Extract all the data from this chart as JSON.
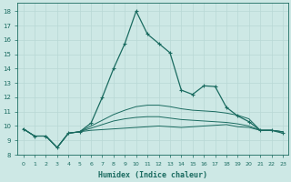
{
  "xlabel": "Humidex (Indice chaleur)",
  "background_color": "#cde8e5",
  "grid_color": "#b8d8d5",
  "line_color": "#1a6b60",
  "xlim": [
    -0.5,
    23.5
  ],
  "ylim": [
    8,
    18.6
  ],
  "yticks": [
    8,
    9,
    10,
    11,
    12,
    13,
    14,
    15,
    16,
    17,
    18
  ],
  "xticks": [
    0,
    1,
    2,
    3,
    4,
    5,
    6,
    7,
    8,
    9,
    10,
    11,
    12,
    13,
    14,
    15,
    16,
    17,
    18,
    19,
    20,
    21,
    22,
    23
  ],
  "flat_series": [
    [
      9.8,
      9.3,
      9.3,
      8.5,
      9.5,
      9.6,
      9.7,
      9.75,
      9.8,
      9.85,
      9.9,
      9.95,
      10.0,
      9.95,
      9.9,
      9.95,
      10.0,
      10.05,
      10.1,
      9.95,
      9.9,
      9.7,
      9.7,
      9.6
    ],
    [
      9.8,
      9.3,
      9.3,
      8.5,
      9.5,
      9.6,
      9.85,
      10.1,
      10.35,
      10.5,
      10.6,
      10.65,
      10.65,
      10.55,
      10.45,
      10.4,
      10.35,
      10.3,
      10.25,
      10.15,
      10.0,
      9.7,
      9.7,
      9.6
    ],
    [
      9.8,
      9.3,
      9.3,
      8.5,
      9.5,
      9.6,
      10.0,
      10.4,
      10.8,
      11.1,
      11.35,
      11.45,
      11.45,
      11.35,
      11.2,
      11.1,
      11.05,
      11.0,
      10.9,
      10.75,
      10.5,
      9.7,
      9.7,
      9.6
    ]
  ],
  "main_series": [
    9.8,
    9.3,
    9.3,
    8.5,
    9.5,
    9.6,
    10.2,
    12.0,
    14.0,
    15.75,
    18.0,
    16.4,
    15.75,
    15.1,
    12.5,
    12.2,
    12.8,
    12.75,
    11.3,
    10.7,
    10.3,
    9.7,
    9.7,
    9.5
  ]
}
